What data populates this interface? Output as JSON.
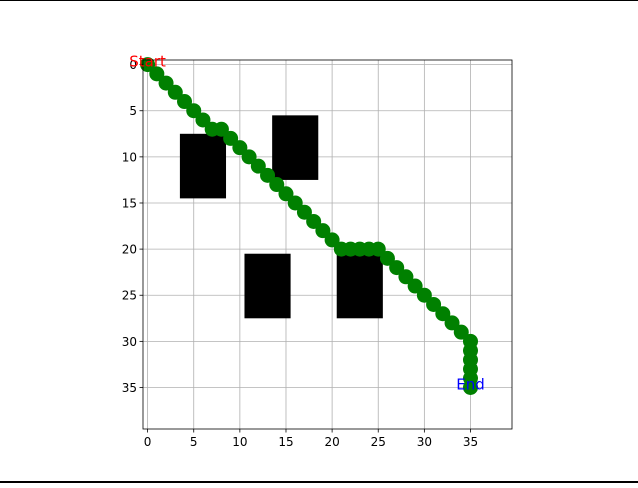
{
  "chart_data": {
    "type": "scatter",
    "title": "",
    "xlabel": "",
    "ylabel": "",
    "grid": true,
    "y_inverted": true,
    "xlim": [
      -0.5,
      39.5
    ],
    "ylim": [
      39.5,
      -0.5
    ],
    "x_ticks": [
      0,
      5,
      10,
      15,
      20,
      25,
      30,
      35
    ],
    "y_ticks": [
      0,
      5,
      10,
      15,
      20,
      25,
      30,
      35
    ],
    "obstacles": [
      {
        "x0": 3.5,
        "x1": 8.5,
        "y0": 7.5,
        "y1": 14.5
      },
      {
        "x0": 13.5,
        "x1": 18.5,
        "y0": 5.5,
        "y1": 12.5
      },
      {
        "x0": 10.5,
        "x1": 15.5,
        "y0": 20.5,
        "y1": 27.5
      },
      {
        "x0": 20.5,
        "x1": 25.5,
        "y0": 20.5,
        "y1": 27.5
      }
    ],
    "path": {
      "color": "#008000",
      "x": [
        0,
        1,
        2,
        3,
        4,
        5,
        6,
        7,
        8,
        9,
        10,
        11,
        12,
        13,
        14,
        15,
        16,
        17,
        18,
        19,
        20,
        21,
        22,
        23,
        24,
        25,
        26,
        27,
        28,
        29,
        30,
        31,
        32,
        33,
        34,
        35,
        35,
        35,
        35,
        35,
        35
      ],
      "y": [
        0,
        1,
        2,
        3,
        4,
        5,
        6,
        7,
        7,
        8,
        9,
        10,
        11,
        12,
        13,
        14,
        15,
        16,
        17,
        18,
        19,
        20,
        20,
        20,
        20,
        20,
        21,
        22,
        23,
        24,
        25,
        26,
        27,
        28,
        29,
        30,
        31,
        32,
        33,
        34,
        35
      ]
    },
    "annotations": [
      {
        "text": "Start",
        "x": 0,
        "y": 0,
        "color": "#ff0000"
      },
      {
        "text": "End",
        "x": 35,
        "y": 35,
        "color": "#0000ff"
      }
    ]
  }
}
